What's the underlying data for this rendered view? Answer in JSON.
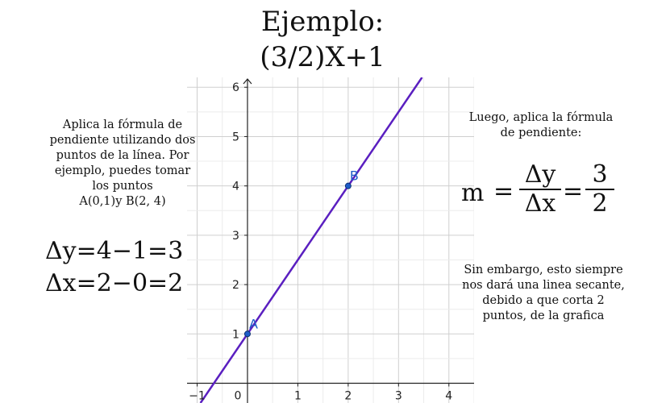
{
  "title": {
    "line1": "Ejemplo:",
    "line2": "(3/2)X+1"
  },
  "left_note": {
    "lines": [
      "Aplica la fórmula de",
      "pendiente utilizando dos",
      "puntos de la línea. Por",
      "ejemplo, puedes tomar",
      "los puntos",
      "A(0,1)y B(2, 4)"
    ]
  },
  "delta_y": "Δy=4−1=3",
  "delta_x": "Δx=2−0=2",
  "right_note1": {
    "lines": [
      "Luego, aplica la fórmula",
      "de pendiente:"
    ]
  },
  "formula": {
    "m": "m",
    "eq1": "=",
    "num1": "Δy",
    "den1": "Δx",
    "eq2": "=",
    "num2": "3",
    "den2": "2"
  },
  "right_note2": {
    "lines": [
      "Sin embargo, esto siempre",
      "nos dará una linea secante,",
      "debido a que corta 2",
      "puntos, de la grafica"
    ]
  },
  "chart_data": {
    "type": "line",
    "xlim": [
      -1.2,
      4.5
    ],
    "ylim": [
      -0.4,
      6.2
    ],
    "x_ticks": [
      -1,
      0,
      1,
      2,
      3,
      4
    ],
    "y_ticks": [
      1,
      2,
      3,
      4,
      5,
      6
    ],
    "x_tick_labels": [
      "−1",
      "0",
      "1",
      "2",
      "3",
      "4"
    ],
    "y_tick_labels": [
      "1",
      "2",
      "3",
      "4",
      "5",
      "6"
    ],
    "grid": true,
    "line": {
      "slope": 1.5,
      "intercept": 1,
      "color": "#5a1fc0"
    },
    "points": [
      {
        "label": "A",
        "x": 0,
        "y": 1
      },
      {
        "label": "B",
        "x": 2,
        "y": 4
      }
    ],
    "point_color": "#1e5cc8",
    "axis_color": "#222222",
    "grid_color": "#d0d0d0"
  }
}
